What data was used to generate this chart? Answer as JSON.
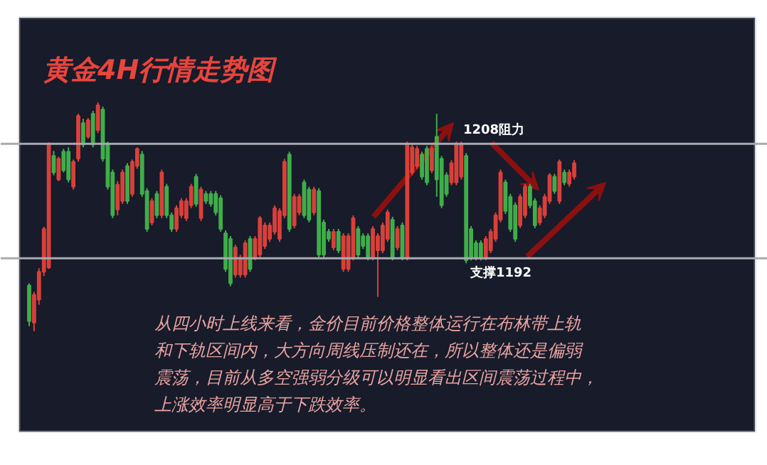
{
  "chart_data": {
    "type": "candlestick",
    "title": "黄金4H行情走势图",
    "categories": [
      null,
      null,
      null,
      null,
      null,
      null,
      null,
      null,
      null,
      null,
      null,
      null,
      null,
      null,
      null,
      null,
      null,
      null,
      null,
      null,
      null,
      null,
      null,
      null,
      null,
      null,
      null,
      null,
      null,
      null,
      null,
      null,
      null,
      null,
      null,
      null,
      null,
      null,
      null,
      null,
      null,
      null,
      null,
      null,
      null,
      null,
      null,
      null,
      null,
      null,
      null,
      null,
      null,
      null,
      null,
      null,
      null,
      null,
      null,
      null,
      null,
      null,
      null,
      null,
      null,
      null,
      null,
      null,
      null,
      null,
      null,
      null,
      null,
      null,
      null,
      null,
      null,
      null,
      null,
      null,
      null,
      null,
      null,
      null,
      null,
      null,
      null,
      null,
      null,
      null,
      null,
      null,
      null,
      null,
      null,
      null,
      null,
      null,
      null,
      null,
      null,
      null,
      null,
      null,
      null,
      null,
      null,
      null,
      null,
      null,
      null,
      null
    ],
    "ohlc": [
      [
        1188.2,
        1188.5,
        1182.5,
        1183.2
      ],
      [
        1183.0,
        1187.3,
        1181.8,
        1186.9
      ],
      [
        1186.2,
        1190.6,
        1185.5,
        1190.1
      ],
      [
        1190.1,
        1196.4,
        1189.5,
        1196.1
      ],
      [
        1190.7,
        1208.2,
        1190.5,
        1207.9
      ],
      [
        1206.3,
        1207.0,
        1203.6,
        1204.0
      ],
      [
        1203.0,
        1206.2,
        1202.8,
        1205.9
      ],
      [
        1206.9,
        1207.3,
        1204.0,
        1204.3
      ],
      [
        1206.9,
        1207.5,
        1202.6,
        1203.0
      ],
      [
        1202.0,
        1205.8,
        1201.6,
        1205.5
      ],
      [
        1205.9,
        1212.2,
        1205.5,
        1211.9
      ],
      [
        1210.9,
        1211.5,
        1207.5,
        1207.9
      ],
      [
        1209.0,
        1211.6,
        1208.7,
        1211.3
      ],
      [
        1212.2,
        1212.6,
        1207.5,
        1207.9
      ],
      [
        1209.9,
        1213.8,
        1209.5,
        1213.4
      ],
      [
        1212.8,
        1213.2,
        1205.5,
        1205.9
      ],
      [
        1207.9,
        1208.3,
        1201.6,
        1202.0
      ],
      [
        1204.0,
        1204.4,
        1197.6,
        1198.0
      ],
      [
        1198.8,
        1202.8,
        1198.0,
        1202.3
      ],
      [
        1200.0,
        1204.4,
        1199.6,
        1204.0
      ],
      [
        1204.9,
        1205.3,
        1199.6,
        1200.0
      ],
      [
        1201.0,
        1205.8,
        1200.6,
        1205.5
      ],
      [
        1204.9,
        1207.5,
        1204.5,
        1207.3
      ],
      [
        1206.5,
        1207.0,
        1200.6,
        1201.0
      ],
      [
        1201.4,
        1201.8,
        1195.7,
        1196.1
      ],
      [
        1197.0,
        1200.4,
        1196.6,
        1200.0
      ],
      [
        1201.0,
        1201.4,
        1197.6,
        1198.0
      ],
      [
        1198.0,
        1204.4,
        1197.6,
        1204.0
      ],
      [
        1202.0,
        1202.4,
        1197.6,
        1198.0
      ],
      [
        1198.0,
        1198.4,
        1195.7,
        1196.1
      ],
      [
        1196.1,
        1199.4,
        1195.7,
        1199.0
      ],
      [
        1198.0,
        1200.4,
        1197.6,
        1200.0
      ],
      [
        1197.6,
        1200.4,
        1197.2,
        1200.0
      ],
      [
        1199.4,
        1202.4,
        1199.0,
        1202.0
      ],
      [
        1203.4,
        1203.8,
        1199.2,
        1199.6
      ],
      [
        1197.6,
        1202.0,
        1197.2,
        1201.6
      ],
      [
        1201.0,
        1201.4,
        1199.6,
        1200.0
      ],
      [
        1201.0,
        1201.4,
        1199.2,
        1199.6
      ],
      [
        1201.0,
        1201.4,
        1198.0,
        1198.4
      ],
      [
        1200.4,
        1200.8,
        1195.7,
        1196.1
      ],
      [
        1195.5,
        1195.9,
        1190.1,
        1190.5
      ],
      [
        1194.7,
        1195.1,
        1188.1,
        1188.5
      ],
      [
        1189.7,
        1193.9,
        1189.3,
        1193.5
      ],
      [
        1189.7,
        1192.5,
        1189.3,
        1192.1
      ],
      [
        1189.7,
        1194.5,
        1189.3,
        1194.1
      ],
      [
        1194.7,
        1195.1,
        1190.1,
        1190.5
      ],
      [
        1192.1,
        1195.1,
        1191.7,
        1194.7
      ],
      [
        1192.5,
        1197.9,
        1192.1,
        1197.6
      ],
      [
        1193.7,
        1197.0,
        1193.3,
        1196.6
      ],
      [
        1194.7,
        1197.0,
        1194.3,
        1196.6
      ],
      [
        1195.7,
        1199.4,
        1195.3,
        1199.0
      ],
      [
        1194.7,
        1199.0,
        1194.3,
        1198.6
      ],
      [
        1198.0,
        1205.9,
        1197.6,
        1205.5
      ],
      [
        1206.5,
        1206.9,
        1195.7,
        1196.1
      ],
      [
        1196.6,
        1201.0,
        1196.2,
        1200.6
      ],
      [
        1198.4,
        1201.0,
        1198.0,
        1200.6
      ],
      [
        1202.6,
        1203.0,
        1197.6,
        1198.0
      ],
      [
        1201.6,
        1202.0,
        1197.0,
        1197.4
      ],
      [
        1198.4,
        1202.0,
        1198.0,
        1201.6
      ],
      [
        1201.4,
        1201.8,
        1192.1,
        1192.5
      ],
      [
        1197.0,
        1197.4,
        1192.1,
        1192.5
      ],
      [
        1195.7,
        1196.1,
        1194.3,
        1194.7
      ],
      [
        1193.5,
        1196.1,
        1193.1,
        1195.7
      ],
      [
        1195.7,
        1196.1,
        1192.7,
        1193.1
      ],
      [
        1190.5,
        1195.5,
        1190.1,
        1195.1
      ],
      [
        1190.5,
        1195.5,
        1190.1,
        1195.1
      ],
      [
        1192.1,
        1198.0,
        1191.7,
        1197.6
      ],
      [
        1196.1,
        1196.5,
        1192.1,
        1192.5
      ],
      [
        1195.1,
        1195.5,
        1193.3,
        1193.7
      ],
      [
        1195.1,
        1195.5,
        1191.7,
        1192.1
      ],
      [
        1192.1,
        1196.5,
        1191.7,
        1196.1
      ],
      [
        1193.1,
        1195.5,
        1186.6,
        1195.1
      ],
      [
        1193.1,
        1197.0,
        1192.7,
        1196.6
      ],
      [
        1194.7,
        1198.8,
        1194.3,
        1198.4
      ],
      [
        1197.4,
        1197.8,
        1191.7,
        1192.1
      ],
      [
        1193.5,
        1196.5,
        1193.1,
        1196.1
      ],
      [
        1196.6,
        1197.0,
        1191.7,
        1192.1
      ],
      [
        1192.1,
        1208.3,
        1191.7,
        1207.9
      ],
      [
        1204.0,
        1207.9,
        1203.6,
        1207.5
      ],
      [
        1204.9,
        1207.7,
        1204.5,
        1207.3
      ],
      [
        1206.5,
        1206.9,
        1203.0,
        1203.4
      ],
      [
        1207.3,
        1207.7,
        1202.2,
        1202.6
      ],
      [
        1204.3,
        1207.7,
        1203.9,
        1207.3
      ],
      [
        1209.0,
        1212.2,
        1200.6,
        1203.0
      ],
      [
        1205.9,
        1206.3,
        1199.0,
        1199.4
      ],
      [
        1203.6,
        1204.0,
        1200.6,
        1201.0
      ],
      [
        1202.6,
        1205.7,
        1202.2,
        1205.3
      ],
      [
        1202.6,
        1208.3,
        1202.2,
        1207.9
      ],
      [
        1203.4,
        1208.3,
        1203.0,
        1207.9
      ],
      [
        1206.3,
        1206.7,
        1191.3,
        1191.7
      ],
      [
        1196.1,
        1196.5,
        1191.7,
        1192.1
      ],
      [
        1194.1,
        1194.5,
        1191.7,
        1192.1
      ],
      [
        1194.1,
        1194.5,
        1191.7,
        1192.1
      ],
      [
        1192.1,
        1195.1,
        1191.7,
        1194.7
      ],
      [
        1193.1,
        1196.1,
        1192.7,
        1195.7
      ],
      [
        1194.7,
        1198.4,
        1194.3,
        1198.0
      ],
      [
        1197.4,
        1204.4,
        1197.0,
        1204.0
      ],
      [
        1202.6,
        1203.0,
        1198.2,
        1198.6
      ],
      [
        1200.6,
        1201.0,
        1195.7,
        1196.1
      ],
      [
        1199.4,
        1199.8,
        1194.3,
        1194.7
      ],
      [
        1196.6,
        1201.0,
        1196.2,
        1200.6
      ],
      [
        1198.0,
        1202.4,
        1197.6,
        1202.0
      ],
      [
        1202.0,
        1202.4,
        1199.0,
        1199.4
      ],
      [
        1200.0,
        1200.4,
        1196.2,
        1196.6
      ],
      [
        1197.0,
        1199.4,
        1196.6,
        1199.0
      ],
      [
        1198.0,
        1201.0,
        1197.6,
        1200.6
      ],
      [
        1200.0,
        1203.9,
        1199.6,
        1203.6
      ],
      [
        1203.4,
        1203.8,
        1201.0,
        1201.4
      ],
      [
        1200.0,
        1205.8,
        1199.6,
        1205.5
      ],
      [
        1204.0,
        1204.4,
        1202.2,
        1202.6
      ],
      [
        1202.4,
        1204.4,
        1202.0,
        1204.0
      ],
      [
        1203.4,
        1205.7,
        1203.0,
        1205.3
      ]
    ],
    "colors": [
      "#3fae4a",
      "#d9403a",
      "#d9403a",
      "#d9403a",
      "#d9403a",
      "#3fae4a",
      "#d9403a",
      "#3fae4a",
      "#3fae4a",
      "#d9403a",
      "#d9403a",
      "#3fae4a",
      "#d9403a",
      "#3fae4a",
      "#d9403a",
      "#3fae4a",
      "#3fae4a",
      "#3fae4a",
      "#d9403a",
      "#d9403a",
      "#3fae4a",
      "#d9403a",
      "#d9403a",
      "#3fae4a",
      "#3fae4a",
      "#d9403a",
      "#3fae4a",
      "#d9403a",
      "#3fae4a",
      "#3fae4a",
      "#d9403a",
      "#d9403a",
      "#d9403a",
      "#d9403a",
      "#3fae4a",
      "#d9403a",
      "#3fae4a",
      "#3fae4a",
      "#3fae4a",
      "#3fae4a",
      "#3fae4a",
      "#3fae4a",
      "#d9403a",
      "#d9403a",
      "#d9403a",
      "#3fae4a",
      "#d9403a",
      "#d9403a",
      "#d9403a",
      "#d9403a",
      "#d9403a",
      "#d9403a",
      "#d9403a",
      "#3fae4a",
      "#d9403a",
      "#d9403a",
      "#3fae4a",
      "#3fae4a",
      "#d9403a",
      "#3fae4a",
      "#3fae4a",
      "#3fae4a",
      "#d9403a",
      "#3fae4a",
      "#d9403a",
      "#d9403a",
      "#d9403a",
      "#3fae4a",
      "#3fae4a",
      "#3fae4a",
      "#d9403a",
      "#d9403a",
      "#d9403a",
      "#d9403a",
      "#3fae4a",
      "#d9403a",
      "#3fae4a",
      "#d9403a",
      "#d9403a",
      "#d9403a",
      "#3fae4a",
      "#3fae4a",
      "#d9403a",
      "#3fae4a",
      "#3fae4a",
      "#3fae4a",
      "#d9403a",
      "#d9403a",
      "#d9403a",
      "#3fae4a",
      "#3fae4a",
      "#3fae4a",
      "#3fae4a",
      "#d9403a",
      "#d9403a",
      "#d9403a",
      "#d9403a",
      "#3fae4a",
      "#3fae4a",
      "#3fae4a",
      "#d9403a",
      "#d9403a",
      "#3fae4a",
      "#3fae4a",
      "#d9403a",
      "#d9403a",
      "#d9403a",
      "#3fae4a",
      "#d9403a",
      "#3fae4a",
      "#d9403a",
      "#d9403a"
    ],
    "ylim": [
      1163,
      1228
    ],
    "tick_labels": false,
    "grid": false,
    "ref_lines": [
      {
        "axis": "y",
        "value": 1208,
        "label": "1208阻力",
        "color": "#a9a9b0"
      },
      {
        "axis": "y",
        "value": 1192,
        "label": "支撑1192",
        "color": "#a9a9b0"
      }
    ],
    "annotations": [
      "从四小时上线来看，金价目前价格整体运行在布林带上轨",
      "和下轨区间内，大方向周线压制还在，所以整体还是偏弱",
      "震荡，目前从多空强弱分级可以明显看出区间震荡过程中，",
      "上涨效率明显高于下跌效率。"
    ]
  }
}
